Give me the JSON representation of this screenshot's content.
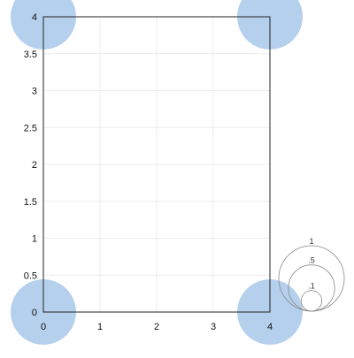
{
  "chart_data": {
    "type": "scatter",
    "title": "",
    "xlabel": "",
    "ylabel": "",
    "xlim": [
      0,
      4
    ],
    "ylim": [
      0,
      4
    ],
    "x_ticks": [
      "0",
      "1",
      "2",
      "3",
      "4"
    ],
    "y_ticks": [
      "0",
      "0.5",
      "1",
      "1.5",
      "2",
      "2.5",
      "3",
      "3.5",
      "4"
    ],
    "grid": true,
    "series": [
      {
        "color": "#a8c8ea",
        "points": [
          {
            "x": 0,
            "y": 0,
            "size": 1
          },
          {
            "x": 4,
            "y": 0,
            "size": 1
          },
          {
            "x": 0,
            "y": 4,
            "size": 1
          },
          {
            "x": 4,
            "y": 4,
            "size": 1
          }
        ]
      }
    ],
    "size_legend": {
      "placement": "bottom-right",
      "entries": [
        {
          "label": "1",
          "value": 1
        },
        {
          "label": ".5",
          "value": 0.5
        },
        {
          "label": ".1",
          "value": 0.1
        }
      ]
    }
  }
}
